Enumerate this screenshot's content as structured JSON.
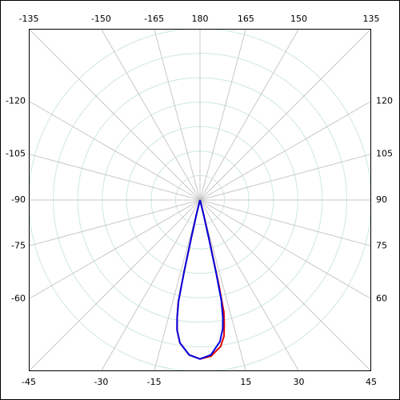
{
  "chart_data": {
    "type": "polar",
    "angle_ticks": [
      180,
      165,
      150,
      135,
      120,
      105,
      90,
      75,
      60,
      45,
      30,
      15,
      -15,
      -30,
      -45,
      -60,
      -75,
      -90,
      -105,
      -120,
      -135,
      -150,
      -165
    ],
    "rlim": [
      0,
      7
    ],
    "rticks": [
      1,
      2,
      3,
      4,
      5,
      6,
      7
    ],
    "series": [
      {
        "color": "#e00000",
        "angles": [
          -15,
          -14,
          -13,
          -12.5,
          -12,
          -11,
          -10,
          -8,
          -4,
          0,
          4,
          8,
          10,
          11,
          12,
          12.5,
          13,
          14,
          15
        ],
        "values": [
          0,
          0.5,
          1.6,
          3.0,
          4.3,
          4.9,
          5.4,
          5.9,
          6.35,
          6.5,
          6.4,
          6.05,
          5.65,
          5.2,
          4.7,
          3.6,
          1.9,
          0.6,
          0
        ]
      },
      {
        "color": "#0000e0",
        "angles": [
          -15,
          -14,
          -13,
          -12.5,
          -12,
          -11,
          -10,
          -8,
          -4,
          0,
          4,
          8,
          10,
          11,
          12,
          12.5,
          13,
          14,
          15
        ],
        "values": [
          0,
          0.5,
          1.6,
          3.0,
          4.2,
          4.9,
          5.4,
          5.9,
          6.35,
          6.5,
          6.35,
          5.85,
          5.35,
          4.9,
          4.2,
          3.0,
          1.6,
          0.5,
          0
        ]
      }
    ]
  }
}
